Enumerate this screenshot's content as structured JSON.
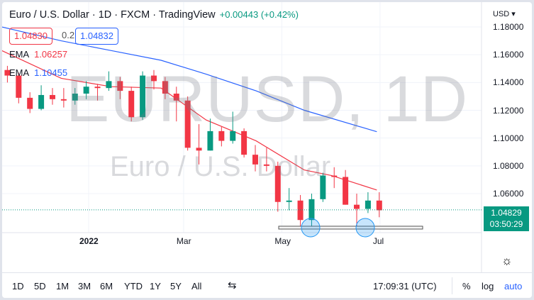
{
  "header": {
    "title": "Euro / U.S. Dollar · 1D · FXCM · TradingView",
    "change": "+0.00443 (+0.42%)",
    "bid": "1.04830",
    "spread": "0.2",
    "ask": "1.04832",
    "currency": "USD ▾"
  },
  "indicators": [
    {
      "label": "EMA",
      "value": "1.06257",
      "color": "#f23645"
    },
    {
      "label": "EMA",
      "value": "1.10455",
      "color": "#2962ff"
    }
  ],
  "watermark": {
    "symbol": "EURUSD, 1D",
    "name": "Euro / U.S. Dollar"
  },
  "price_badge": {
    "price": "1.04829",
    "countdown": "03:50:29",
    "color": "#089981"
  },
  "toolbar": {
    "ranges": [
      "1D",
      "5D",
      "1M",
      "3M",
      "6M",
      "YTD",
      "1Y",
      "5Y",
      "All"
    ],
    "time": "17:09:31 (UTC)",
    "percent": "%",
    "log": "log",
    "auto": "auto"
  },
  "chart_data": {
    "type": "candlestick",
    "y_ticks": [
      "1.18000",
      "1.16000",
      "1.14000",
      "1.12000",
      "1.10000",
      "1.08000",
      "1.06000"
    ],
    "ylim": [
      1.03,
      1.19
    ],
    "x_ticks": [
      {
        "label": "2022",
        "date": "2022-01-01"
      },
      {
        "label": "Mar",
        "date": "2022-03-01"
      },
      {
        "label": "May",
        "date": "2022-05-01"
      },
      {
        "label": "Jul",
        "date": "2022-07-01"
      }
    ],
    "candles_weekly": [
      [
        "2021-11-08",
        1.149,
        1.152,
        1.14,
        1.145
      ],
      [
        "2021-11-15",
        1.145,
        1.147,
        1.125,
        1.129
      ],
      [
        "2021-11-22",
        1.129,
        1.133,
        1.118,
        1.121
      ],
      [
        "2021-11-29",
        1.121,
        1.138,
        1.12,
        1.131
      ],
      [
        "2021-12-06",
        1.131,
        1.136,
        1.124,
        1.128
      ],
      [
        "2021-12-13",
        1.128,
        1.136,
        1.122,
        1.127
      ],
      [
        "2021-12-20",
        1.127,
        1.136,
        1.124,
        1.132
      ],
      [
        "2021-12-27",
        1.132,
        1.141,
        1.128,
        1.137
      ],
      [
        "2022-01-03",
        1.137,
        1.139,
        1.127,
        1.136
      ],
      [
        "2022-01-10",
        1.136,
        1.148,
        1.134,
        1.141
      ],
      [
        "2022-01-17",
        1.141,
        1.144,
        1.128,
        1.134
      ],
      [
        "2022-01-24",
        1.134,
        1.137,
        1.112,
        1.115
      ],
      [
        "2022-01-31",
        1.115,
        1.148,
        1.113,
        1.145
      ],
      [
        "2022-02-07",
        1.145,
        1.149,
        1.135,
        1.141
      ],
      [
        "2022-02-14",
        1.141,
        1.144,
        1.128,
        1.132
      ],
      [
        "2022-02-21",
        1.132,
        1.137,
        1.112,
        1.127
      ],
      [
        "2022-02-28",
        1.127,
        1.13,
        1.091,
        1.093
      ],
      [
        "2022-03-07",
        1.093,
        1.11,
        1.081,
        1.091
      ],
      [
        "2022-03-14",
        1.091,
        1.114,
        1.091,
        1.105
      ],
      [
        "2022-03-21",
        1.105,
        1.108,
        1.094,
        1.098
      ],
      [
        "2022-03-28",
        1.098,
        1.119,
        1.096,
        1.105
      ],
      [
        "2022-04-04",
        1.105,
        1.107,
        1.086,
        1.088
      ],
      [
        "2022-04-11",
        1.088,
        1.095,
        1.076,
        1.081
      ],
      [
        "2022-04-18",
        1.081,
        1.093,
        1.076,
        1.08
      ],
      [
        "2022-04-25",
        1.08,
        1.083,
        1.047,
        1.054
      ],
      [
        "2022-05-02",
        1.054,
        1.064,
        1.048,
        1.055
      ],
      [
        "2022-05-09",
        1.055,
        1.059,
        1.035,
        1.041
      ],
      [
        "2022-05-16",
        1.041,
        1.06,
        1.036,
        1.056
      ],
      [
        "2022-05-23",
        1.056,
        1.075,
        1.054,
        1.073
      ],
      [
        "2022-05-30",
        1.073,
        1.079,
        1.064,
        1.072
      ],
      [
        "2022-06-06",
        1.072,
        1.077,
        1.052,
        1.052
      ],
      [
        "2022-06-13",
        1.052,
        1.06,
        1.036,
        1.049
      ],
      [
        "2022-06-20",
        1.049,
        1.061,
        1.046,
        1.055
      ],
      [
        "2022-06-27",
        1.055,
        1.061,
        1.043,
        1.048
      ]
    ],
    "ema_short": [
      [
        "2021-11-08",
        1.163
      ],
      [
        "2021-12-15",
        1.143
      ],
      [
        "2022-01-15",
        1.137
      ],
      [
        "2022-02-15",
        1.136
      ],
      [
        "2022-03-15",
        1.113
      ],
      [
        "2022-04-15",
        1.098
      ],
      [
        "2022-05-15",
        1.077
      ],
      [
        "2022-06-01",
        1.073
      ],
      [
        "2022-06-29",
        1.0626
      ]
    ],
    "ema_long": [
      [
        "2021-11-08",
        1.18
      ],
      [
        "2021-12-15",
        1.17
      ],
      [
        "2022-01-15",
        1.163
      ],
      [
        "2022-02-15",
        1.156
      ],
      [
        "2022-03-15",
        1.146
      ],
      [
        "2022-04-15",
        1.134
      ],
      [
        "2022-05-15",
        1.12
      ],
      [
        "2022-06-29",
        1.1046
      ]
    ],
    "support_level": 1.0355,
    "current_price": 1.04829,
    "colors": {
      "up": "#089981",
      "down": "#f23645"
    }
  }
}
